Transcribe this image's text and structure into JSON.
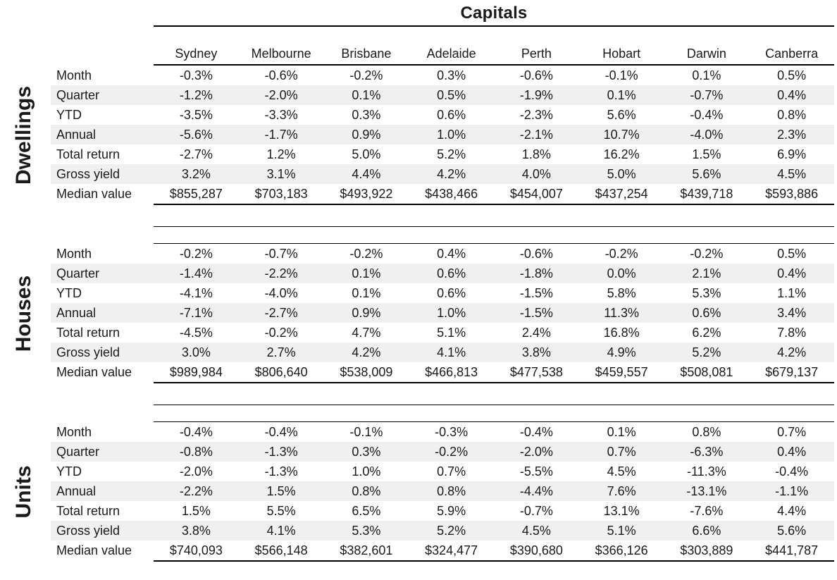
{
  "title": "Capitals",
  "chart_data": {
    "type": "table",
    "title": "Capitals",
    "columns": [
      "Sydney",
      "Melbourne",
      "Brisbane",
      "Adelaide",
      "Perth",
      "Hobart",
      "Darwin",
      "Canberra"
    ],
    "row_labels": [
      "Month",
      "Quarter",
      "YTD",
      "Annual",
      "Total return",
      "Gross yield",
      "Median value"
    ],
    "sections": [
      {
        "name": "Dwellings",
        "rows": [
          [
            "-0.3%",
            "-0.6%",
            "-0.2%",
            "0.3%",
            "-0.6%",
            "-0.1%",
            "0.1%",
            "0.5%"
          ],
          [
            "-1.2%",
            "-2.0%",
            "0.1%",
            "0.5%",
            "-1.9%",
            "0.1%",
            "-0.7%",
            "0.4%"
          ],
          [
            "-3.5%",
            "-3.3%",
            "0.3%",
            "0.6%",
            "-2.3%",
            "5.6%",
            "-0.4%",
            "0.8%"
          ],
          [
            "-5.6%",
            "-1.7%",
            "0.9%",
            "1.0%",
            "-2.1%",
            "10.7%",
            "-4.0%",
            "2.3%"
          ],
          [
            "-2.7%",
            "1.2%",
            "5.0%",
            "5.2%",
            "1.8%",
            "16.2%",
            "1.5%",
            "6.9%"
          ],
          [
            "3.2%",
            "3.1%",
            "4.4%",
            "4.2%",
            "4.0%",
            "5.0%",
            "5.6%",
            "4.5%"
          ],
          [
            "$855,287",
            "$703,183",
            "$493,922",
            "$438,466",
            "$454,007",
            "$437,254",
            "$439,718",
            "$593,886"
          ]
        ]
      },
      {
        "name": "Houses",
        "rows": [
          [
            "-0.2%",
            "-0.7%",
            "-0.2%",
            "0.4%",
            "-0.6%",
            "-0.2%",
            "-0.2%",
            "0.5%"
          ],
          [
            "-1.4%",
            "-2.2%",
            "0.1%",
            "0.6%",
            "-1.8%",
            "0.0%",
            "2.1%",
            "0.4%"
          ],
          [
            "-4.1%",
            "-4.0%",
            "0.1%",
            "0.6%",
            "-1.5%",
            "5.8%",
            "5.3%",
            "1.1%"
          ],
          [
            "-7.1%",
            "-2.7%",
            "0.9%",
            "1.0%",
            "-1.5%",
            "11.3%",
            "0.6%",
            "3.4%"
          ],
          [
            "-4.5%",
            "-0.2%",
            "4.7%",
            "5.1%",
            "2.4%",
            "16.8%",
            "6.2%",
            "7.8%"
          ],
          [
            "3.0%",
            "2.7%",
            "4.2%",
            "4.1%",
            "3.8%",
            "4.9%",
            "5.2%",
            "4.2%"
          ],
          [
            "$989,984",
            "$806,640",
            "$538,009",
            "$466,813",
            "$477,538",
            "$459,557",
            "$508,081",
            "$679,137"
          ]
        ]
      },
      {
        "name": "Units",
        "rows": [
          [
            "-0.4%",
            "-0.4%",
            "-0.1%",
            "-0.3%",
            "-0.4%",
            "0.1%",
            "0.8%",
            "0.7%"
          ],
          [
            "-0.8%",
            "-1.3%",
            "0.3%",
            "-0.2%",
            "-2.0%",
            "0.7%",
            "-6.3%",
            "0.4%"
          ],
          [
            "-2.0%",
            "-1.3%",
            "1.0%",
            "0.7%",
            "-5.5%",
            "4.5%",
            "-11.3%",
            "-0.4%"
          ],
          [
            "-2.2%",
            "1.5%",
            "0.8%",
            "0.8%",
            "-4.4%",
            "7.6%",
            "-13.1%",
            "-1.1%"
          ],
          [
            "1.5%",
            "5.5%",
            "6.5%",
            "5.9%",
            "-0.7%",
            "13.1%",
            "-7.6%",
            "4.4%"
          ],
          [
            "3.8%",
            "4.1%",
            "5.3%",
            "5.2%",
            "4.5%",
            "5.1%",
            "6.6%",
            "5.6%"
          ],
          [
            "$740,093",
            "$566,148",
            "$382,601",
            "$324,477",
            "$390,680",
            "$366,126",
            "$303,889",
            "$441,787"
          ]
        ]
      }
    ]
  },
  "colors": {
    "stripe": "#f0f0f0",
    "text": "#1a1a1a",
    "line": "#000000",
    "background": "#ffffff"
  }
}
